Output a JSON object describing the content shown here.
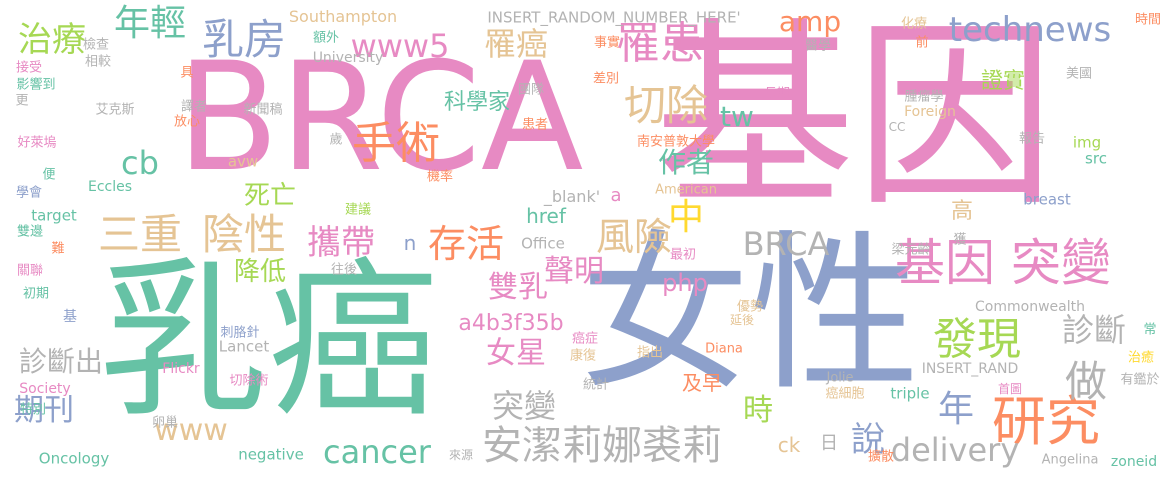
{
  "colors": {
    "pink": "#e78ac3",
    "green": "#66c2a5",
    "blue": "#8da0cb",
    "orange": "#fc8d62",
    "lime": "#a6d854",
    "yellow": "#ffd92f",
    "tan": "#e5c494",
    "gray": "#b3b3b3"
  },
  "words": [
    {
      "text": "BRCA",
      "color": "pink"
    },
    {
      "text": "基因",
      "color": "pink"
    },
    {
      "text": "乳癌",
      "color": "green"
    },
    {
      "text": "女性",
      "color": "blue"
    },
    {
      "text": "基因 突變",
      "color": "pink"
    },
    {
      "text": "研究",
      "color": "orange"
    },
    {
      "text": "安潔莉娜裘莉",
      "color": "gray"
    },
    {
      "text": "technews",
      "color": "blue"
    },
    {
      "text": "BRCA",
      "color": "gray"
    },
    {
      "text": "乳房",
      "color": "blue"
    },
    {
      "text": "罹患",
      "color": "pink"
    },
    {
      "text": "手術",
      "color": "orange"
    },
    {
      "text": "切除",
      "color": "tan"
    },
    {
      "text": "年輕",
      "color": "green"
    },
    {
      "text": "治療",
      "color": "lime"
    },
    {
      "text": "www5",
      "color": "pink"
    },
    {
      "text": "罹癌",
      "color": "tan"
    },
    {
      "text": "amp",
      "color": "orange"
    },
    {
      "text": "tw",
      "color": "green"
    },
    {
      "text": "cb",
      "color": "green"
    },
    {
      "text": "三重",
      "color": "tan"
    },
    {
      "text": "陰性",
      "color": "tan"
    },
    {
      "text": "攜帶",
      "color": "pink"
    },
    {
      "text": "存活",
      "color": "orange"
    },
    {
      "text": "風險",
      "color": "tan"
    },
    {
      "text": "中",
      "color": "yellow"
    },
    {
      "text": "發現",
      "color": "lime"
    },
    {
      "text": "做",
      "color": "gray"
    },
    {
      "text": "年",
      "color": "blue"
    },
    {
      "text": "診斷",
      "color": "gray"
    },
    {
      "text": "診斷出",
      "color": "gray"
    },
    {
      "text": "突變",
      "color": "gray"
    },
    {
      "text": "期刊",
      "color": "blue"
    },
    {
      "text": "www",
      "color": "tan"
    },
    {
      "text": "cancer",
      "color": "green"
    },
    {
      "text": "delivery",
      "color": "gray"
    },
    {
      "text": "說",
      "color": "blue"
    },
    {
      "text": "時",
      "color": "lime"
    },
    {
      "text": "雙乳",
      "color": "pink"
    },
    {
      "text": "聲明",
      "color": "pink"
    },
    {
      "text": "女星",
      "color": "pink"
    },
    {
      "text": "a4b3f35b",
      "color": "pink"
    },
    {
      "text": "php",
      "color": "pink"
    },
    {
      "text": "降低",
      "color": "lime"
    },
    {
      "text": "死亡",
      "color": "lime"
    },
    {
      "text": "作者",
      "color": "green"
    },
    {
      "text": "科學家",
      "color": "green"
    },
    {
      "text": "href",
      "color": "green"
    },
    {
      "text": "n",
      "color": "blue"
    },
    {
      "text": "證實",
      "color": "lime"
    },
    {
      "text": "高",
      "color": "tan"
    },
    {
      "text": "及早",
      "color": "orange"
    },
    {
      "text": "ck",
      "color": "tan"
    },
    {
      "text": "日",
      "color": "gray"
    },
    {
      "text": "a",
      "color": "pink"
    },
    {
      "text": "_blank'",
      "color": "gray"
    },
    {
      "text": "Office",
      "color": "gray"
    },
    {
      "text": "American",
      "color": "tan"
    },
    {
      "text": "Southampton",
      "color": "tan"
    },
    {
      "text": "University",
      "color": "gray"
    },
    {
      "text": "INSERT_RANDOM_NUMBER_HERE'",
      "color": "gray"
    },
    {
      "text": "INSERT_RAND",
      "color": "gray"
    },
    {
      "text": "Commonwealth",
      "color": "gray"
    },
    {
      "text": "breast",
      "color": "blue"
    },
    {
      "text": "img",
      "color": "lime"
    },
    {
      "text": "src",
      "color": "green"
    },
    {
      "text": "Foreign",
      "color": "tan"
    },
    {
      "text": "CC",
      "color": "gray"
    },
    {
      "text": "avw",
      "color": "tan"
    },
    {
      "text": "Eccles",
      "color": "green"
    },
    {
      "text": "target",
      "color": "green"
    },
    {
      "text": "Lancet",
      "color": "gray"
    },
    {
      "text": "Flickr",
      "color": "pink"
    },
    {
      "text": "Society",
      "color": "pink"
    },
    {
      "text": "Oncology",
      "color": "green"
    },
    {
      "text": "negative",
      "color": "green"
    },
    {
      "text": "triple",
      "color": "green"
    },
    {
      "text": "Jolie",
      "color": "gray"
    },
    {
      "text": "Diana",
      "color": "orange"
    },
    {
      "text": "Angelina",
      "color": "gray"
    },
    {
      "text": "zoneid",
      "color": "green"
    },
    {
      "text": "化療",
      "color": "tan"
    },
    {
      "text": "前",
      "color": "orange"
    },
    {
      "text": "時間",
      "color": "orange"
    },
    {
      "text": "醫學",
      "color": "gray"
    },
    {
      "text": "事實",
      "color": "orange"
    },
    {
      "text": "差別",
      "color": "orange"
    },
    {
      "text": "長期",
      "color": "pink"
    },
    {
      "text": "團隊",
      "color": "gray"
    },
    {
      "text": "患者",
      "color": "orange"
    },
    {
      "text": "南安普敦大學",
      "color": "orange"
    },
    {
      "text": "美國",
      "color": "gray"
    },
    {
      "text": "腫瘤學",
      "color": "gray"
    },
    {
      "text": "報告",
      "color": "gray"
    },
    {
      "text": "獲",
      "color": "gray"
    },
    {
      "text": "梁元齡",
      "color": "gray"
    },
    {
      "text": "最初",
      "color": "pink"
    },
    {
      "text": "優勢",
      "color": "tan"
    },
    {
      "text": "延後",
      "color": "tan"
    },
    {
      "text": "指出",
      "color": "tan"
    },
    {
      "text": "康復",
      "color": "tan"
    },
    {
      "text": "癌症",
      "color": "pink"
    },
    {
      "text": "統計",
      "color": "gray"
    },
    {
      "text": "癌細胞",
      "color": "tan"
    },
    {
      "text": "首圖",
      "color": "pink"
    },
    {
      "text": "擴散",
      "color": "orange"
    },
    {
      "text": "來源",
      "color": "gray"
    },
    {
      "text": "治癒",
      "color": "yellow"
    },
    {
      "text": "有鑑於",
      "color": "gray"
    },
    {
      "text": "常",
      "color": "green"
    },
    {
      "text": "檢查",
      "color": "gray"
    },
    {
      "text": "額外",
      "color": "green"
    },
    {
      "text": "相較",
      "color": "gray"
    },
    {
      "text": "具",
      "color": "orange"
    },
    {
      "text": "艾克斯",
      "color": "gray"
    },
    {
      "text": "譯者",
      "color": "gray"
    },
    {
      "text": "新聞稿",
      "color": "gray"
    },
    {
      "text": "放心",
      "color": "orange"
    },
    {
      "text": "歲",
      "color": "gray"
    },
    {
      "text": "機率",
      "color": "orange"
    },
    {
      "text": "建議",
      "color": "lime"
    },
    {
      "text": "往後",
      "color": "gray"
    },
    {
      "text": "刺胳針",
      "color": "blue"
    },
    {
      "text": "切除術",
      "color": "pink"
    },
    {
      "text": "卵巢",
      "color": "gray"
    },
    {
      "text": "接受",
      "color": "pink"
    },
    {
      "text": "影響到",
      "color": "green"
    },
    {
      "text": "更",
      "color": "gray"
    },
    {
      "text": "好萊塢",
      "color": "pink"
    },
    {
      "text": "學會",
      "color": "blue"
    },
    {
      "text": "便",
      "color": "green"
    },
    {
      "text": "雙邊",
      "color": "green"
    },
    {
      "text": "難",
      "color": "orange"
    },
    {
      "text": "關聯",
      "color": "pink"
    },
    {
      "text": "初期",
      "color": "green"
    },
    {
      "text": "基",
      "color": "blue"
    },
    {
      "text": "特別",
      "color": "green"
    }
  ]
}
